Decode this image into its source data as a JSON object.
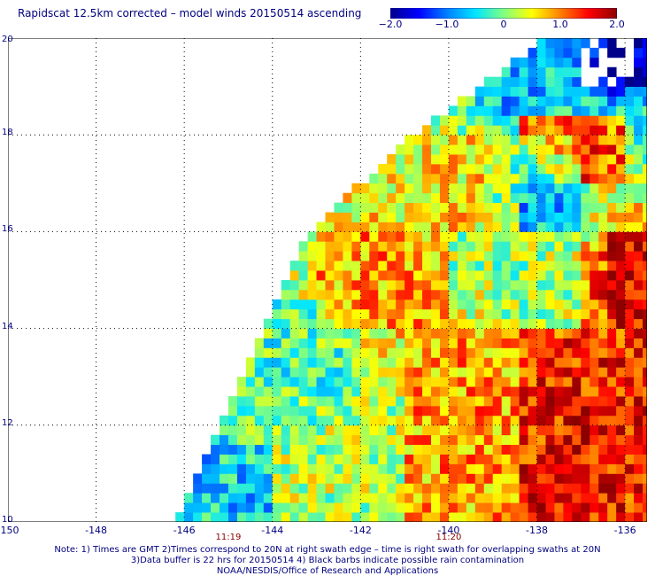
{
  "title": "Rapidscat 12.5km corrected – model winds 20150514 ascending",
  "colorbar": {
    "colors": [
      "#00008b",
      "#0000ff",
      "#0080ff",
      "#00e5ff",
      "#80ff80",
      "#ffff00",
      "#ff8000",
      "#ff0000",
      "#8b0000"
    ],
    "ticks": [
      "−2.0",
      "−1.0",
      "0",
      "1.0",
      "2.0"
    ]
  },
  "notes": {
    "line1": "Note: 1) Times are GMT 2)Times correspond to 20N at right swath edge – time is right swath for overlapping swaths at 20N",
    "line2": "3)Data buffer is 22 hrs for 20150514 4) Black barbs indicate possible rain contamination",
    "line3": "NOAA/NESDIS/Office of Research and Applications"
  },
  "chart_data": {
    "type": "heatmap",
    "title": "Rapidscat 12.5km corrected – model winds 20150514 ascending",
    "xlabel": "",
    "ylabel": "",
    "xlim": [
      -150,
      -135.5
    ],
    "ylim": [
      10,
      20
    ],
    "x_ticks": [
      "-150",
      "-148",
      "-146",
      "-144",
      "-142",
      "-140",
      "-138",
      "-136"
    ],
    "y_ticks": [
      "10",
      "12",
      "14",
      "16",
      "18",
      "20"
    ],
    "grid": true,
    "value_range": [
      -2.0,
      2.0
    ],
    "time_labels": [
      {
        "lon": -145,
        "text": "11:19"
      },
      {
        "lon": -140,
        "text": "11:20"
      }
    ],
    "swath_left_edge": [
      {
        "lat": 10,
        "lon": -146.2
      },
      {
        "lat": 14,
        "lon": -144.2
      },
      {
        "lat": 16,
        "lon": -143.2
      },
      {
        "lat": 18,
        "lon": -140.8
      },
      {
        "lat": 20,
        "lon": -137.8
      }
    ],
    "no_data_region": {
      "lat_min": 18.5,
      "lat_max": 20,
      "lon_min": -137.3,
      "lon_max": -135.5
    },
    "regions": [
      {
        "lat_min": 10,
        "lat_max": 11.5,
        "lon_min": -146.5,
        "lon_max": -144,
        "mean": -0.6
      },
      {
        "lat_min": 10,
        "lat_max": 12.5,
        "lon_min": -144,
        "lon_max": -141,
        "mean": 0.2
      },
      {
        "lat_min": 12,
        "lat_max": 14.5,
        "lon_min": -145,
        "lon_max": -142,
        "mean": -0.2
      },
      {
        "lat_min": 10,
        "lat_max": 15,
        "lon_min": -141,
        "lon_max": -138.5,
        "mean": 0.9
      },
      {
        "lat_min": 10,
        "lat_max": 14,
        "lon_min": -138.5,
        "lon_max": -135.5,
        "mean": 1.5
      },
      {
        "lat_min": 14,
        "lat_max": 16,
        "lon_min": -143,
        "lon_max": -140,
        "mean": 0.9
      },
      {
        "lat_min": 14,
        "lat_max": 16,
        "lon_min": -140,
        "lon_max": -137,
        "mean": 0.1
      },
      {
        "lat_min": 14,
        "lat_max": 16,
        "lon_min": -136.5,
        "lon_max": -135.5,
        "mean": 1.7
      },
      {
        "lat_min": 16,
        "lat_max": 18,
        "lon_min": -141,
        "lon_max": -139,
        "mean": 0.6
      },
      {
        "lat_min": 16,
        "lat_max": 18,
        "lon_min": -138.5,
        "lon_max": -137,
        "mean": -0.8
      },
      {
        "lat_min": 17,
        "lat_max": 18.3,
        "lon_min": -138.5,
        "lon_max": -136,
        "mean": 1.3
      },
      {
        "lat_min": 18.3,
        "lat_max": 20,
        "lon_min": -139.5,
        "lon_max": -136.5,
        "mean": -0.7
      },
      {
        "lat_min": 19,
        "lat_max": 20,
        "lon_min": -137,
        "lon_max": -135.5,
        "mean": -2.0
      }
    ]
  }
}
